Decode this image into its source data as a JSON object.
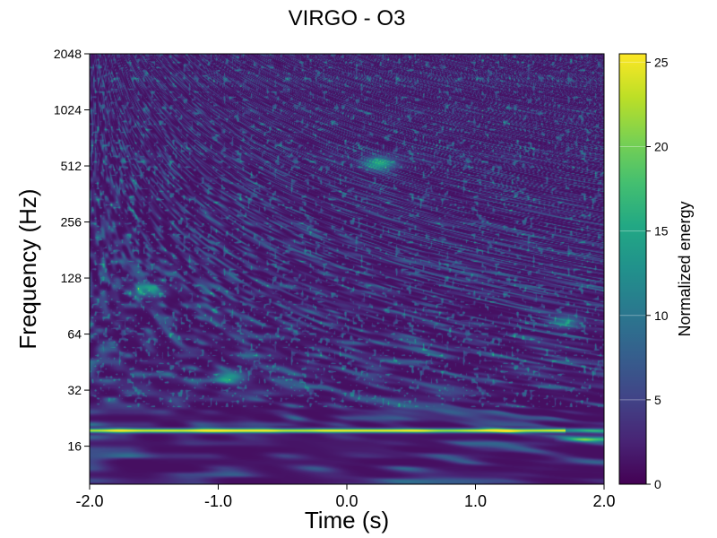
{
  "chart_data": {
    "type": "heatmap",
    "title": "VIRGO - O3",
    "xlabel": "Time (s)",
    "ylabel": "Frequency (Hz)",
    "xlim": [
      -2.0,
      2.0
    ],
    "ylim": [
      10,
      2048
    ],
    "yscale": "log2",
    "x_ticks": [
      {
        "value": -2.0,
        "label": "-2.0"
      },
      {
        "value": -1.0,
        "label": "-1.0"
      },
      {
        "value": 0.0,
        "label": "0.0"
      },
      {
        "value": 1.0,
        "label": "1.0"
      },
      {
        "value": 2.0,
        "label": "2.0"
      }
    ],
    "y_ticks": [
      {
        "value": 16,
        "label": "16"
      },
      {
        "value": 32,
        "label": "32"
      },
      {
        "value": 64,
        "label": "64"
      },
      {
        "value": 128,
        "label": "128"
      },
      {
        "value": 256,
        "label": "256"
      },
      {
        "value": 512,
        "label": "512"
      },
      {
        "value": 1024,
        "label": "1024"
      },
      {
        "value": 2048,
        "label": "2048"
      }
    ],
    "colorbar": {
      "label": "Normalized energy",
      "colormap": "viridis",
      "range": [
        0,
        25.5
      ],
      "ticks": [
        {
          "value": 0,
          "label": "0"
        },
        {
          "value": 5,
          "label": "5"
        },
        {
          "value": 10,
          "label": "10"
        },
        {
          "value": 15,
          "label": "15"
        },
        {
          "value": 20,
          "label": "20"
        },
        {
          "value": 25,
          "label": "25"
        }
      ]
    },
    "features": {
      "background_energy": 1.0,
      "strong_line": {
        "frequency_hz": 19.5,
        "peak_energy": 25,
        "t_start": -2.0,
        "t_end": 1.7
      },
      "secondary_line": {
        "frequency_hz": 17.5,
        "energy": 14,
        "t_start": 1.6,
        "t_end": 2.0
      },
      "hotspots": [
        {
          "t": -0.9,
          "f": 38,
          "energy": 11
        },
        {
          "t": 0.25,
          "f": 530,
          "energy": 13
        },
        {
          "t": 1.7,
          "f": 75,
          "energy": 9
        },
        {
          "t": -1.55,
          "f": 110,
          "energy": 9
        }
      ]
    }
  }
}
